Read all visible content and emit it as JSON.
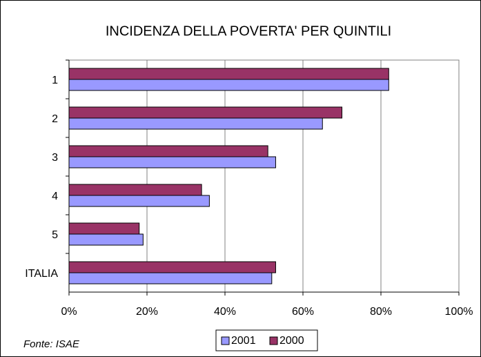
{
  "chart_data": {
    "type": "barh",
    "title": "INCIDENZA DELLA POVERTA' PER QUINTILI",
    "note": "Fonte: ISAE",
    "categories": [
      "1",
      "2",
      "3",
      "4",
      "5",
      "ITALIA"
    ],
    "series": [
      {
        "name": "2001",
        "color": "#9999ff",
        "values": [
          82,
          65,
          53,
          36,
          19,
          52
        ]
      },
      {
        "name": "2000",
        "color": "#993366",
        "values": [
          82,
          70,
          51,
          34,
          18,
          53
        ]
      }
    ],
    "xlim": [
      0,
      100
    ],
    "xticks": [
      {
        "value": 0,
        "label": "0%"
      },
      {
        "value": 20,
        "label": "20%"
      },
      {
        "value": 40,
        "label": "40%"
      },
      {
        "value": 60,
        "label": "60%"
      },
      {
        "value": 80,
        "label": "80%"
      },
      {
        "value": 100,
        "label": "100%"
      }
    ],
    "grid": true,
    "legend": "bottom"
  }
}
